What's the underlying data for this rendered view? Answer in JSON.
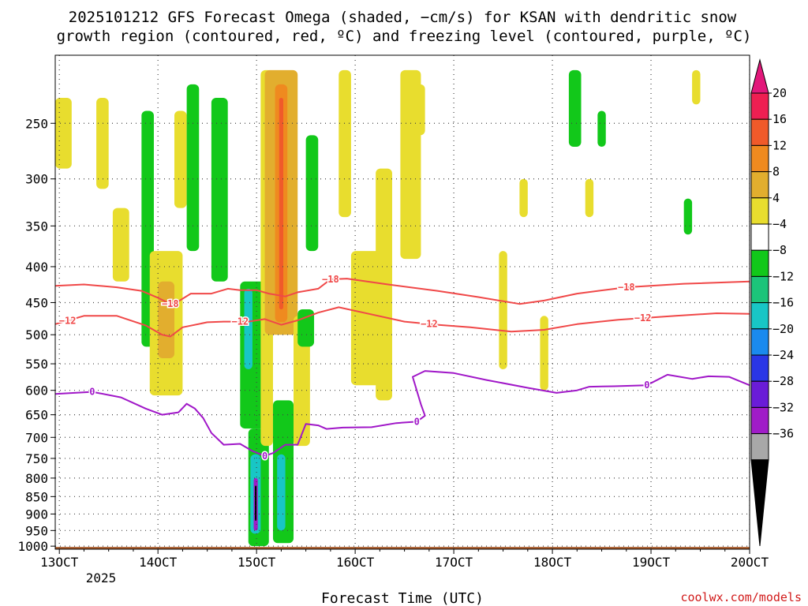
{
  "chart_data": {
    "type": "heatmap",
    "title_line1": "2025101212 GFS Forecast Omega (shaded, −cm/s) for KSAN with dendritic snow",
    "title_line2": "growth region (contoured, red, ºC) and freezing level (contoured, purple, ºC)",
    "xlabel": "Forecast Time (UTC)",
    "x_year_label": "2025",
    "credit": "coolwx.com/models",
    "x_ticks": [
      {
        "label": "13OCT",
        "hour": 0
      },
      {
        "label": "14OCT",
        "hour": 24
      },
      {
        "label": "15OCT",
        "hour": 48
      },
      {
        "label": "16OCT",
        "hour": 72
      },
      {
        "label": "17OCT",
        "hour": 96
      },
      {
        "label": "18OCT",
        "hour": 120
      },
      {
        "label": "19OCT",
        "hour": 144
      },
      {
        "label": "20OCT",
        "hour": 168
      }
    ],
    "x_range_hours": [
      -1,
      168
    ],
    "y_ticks": [
      250,
      300,
      350,
      400,
      450,
      500,
      550,
      600,
      650,
      700,
      750,
      800,
      850,
      900,
      950,
      1000
    ],
    "y_range_hpa": [
      200,
      1010
    ],
    "colorbar": {
      "ticks": [
        "20",
        "16",
        "12",
        "8",
        "4",
        "−4",
        "−8",
        "−12",
        "−16",
        "−20",
        "−24",
        "−28",
        "−32",
        "−36"
      ],
      "colors": [
        "#ee1f52",
        "#f05a2a",
        "#ef8a1f",
        "#e2ae2e",
        "#e8dd2e",
        "#ffffff",
        "#12c81a",
        "#1cc47a",
        "#18c6c6",
        "#1a8aee",
        "#2a36e6",
        "#6a1cd8",
        "#a01cc8",
        "#a8a8a8",
        "#000000"
      ],
      "top_arrow_color": "#e2177a",
      "bottom_arrow_color": "#000000"
    },
    "contours": [
      {
        "name": "dgz-minus18",
        "label": "−18",
        "color": "#f04848",
        "points": [
          [
            -1,
            426
          ],
          [
            6,
            424
          ],
          [
            14,
            428
          ],
          [
            20,
            433
          ],
          [
            24,
            443
          ],
          [
            27,
            452
          ],
          [
            29,
            448
          ],
          [
            32,
            437
          ],
          [
            37,
            437
          ],
          [
            41,
            430
          ],
          [
            44,
            432
          ],
          [
            48,
            432
          ],
          [
            51,
            437
          ],
          [
            55,
            441
          ],
          [
            58,
            435
          ],
          [
            63,
            430
          ],
          [
            66,
            417
          ],
          [
            70,
            416
          ],
          [
            80,
            424
          ],
          [
            92,
            433
          ],
          [
            102,
            442
          ],
          [
            112,
            452
          ],
          [
            118,
            447
          ],
          [
            126,
            437
          ],
          [
            138,
            428
          ],
          [
            152,
            423
          ],
          [
            168,
            420
          ]
        ],
        "label_hours": [
          27,
          66,
          138
        ]
      },
      {
        "name": "dgz-minus12",
        "label": "−12",
        "color": "#f04848",
        "points": [
          [
            -1,
            483
          ],
          [
            6,
            470
          ],
          [
            14,
            470
          ],
          [
            21,
            485
          ],
          [
            25,
            500
          ],
          [
            27,
            503
          ],
          [
            30,
            488
          ],
          [
            36,
            480
          ],
          [
            40,
            479
          ],
          [
            46,
            479
          ],
          [
            50,
            475
          ],
          [
            54,
            484
          ],
          [
            58,
            477
          ],
          [
            63,
            465
          ],
          [
            68,
            457
          ],
          [
            74,
            465
          ],
          [
            84,
            479
          ],
          [
            92,
            484
          ],
          [
            100,
            488
          ],
          [
            110,
            495
          ],
          [
            118,
            492
          ],
          [
            126,
            483
          ],
          [
            136,
            476
          ],
          [
            150,
            470
          ],
          [
            160,
            466
          ],
          [
            168,
            467
          ]
        ],
        "label_hours": [
          2,
          44,
          90,
          142
        ]
      },
      {
        "name": "freezing-level-0c",
        "label": "0",
        "color": "#a017c8",
        "points": [
          [
            -1,
            607
          ],
          [
            8,
            603
          ],
          [
            15,
            614
          ],
          [
            21,
            637
          ],
          [
            25,
            650
          ],
          [
            29,
            645
          ],
          [
            31,
            627
          ],
          [
            33,
            637
          ],
          [
            35,
            657
          ],
          [
            37,
            690
          ],
          [
            40,
            717
          ],
          [
            44,
            715
          ],
          [
            47,
            732
          ],
          [
            50,
            744
          ],
          [
            52,
            737
          ],
          [
            55,
            717
          ],
          [
            58,
            717
          ],
          [
            60,
            670
          ],
          [
            63,
            673
          ],
          [
            65,
            681
          ],
          [
            69,
            678
          ],
          [
            76,
            677
          ],
          [
            82,
            668
          ],
          [
            87,
            665
          ],
          [
            89,
            652
          ],
          [
            88,
            628
          ],
          [
            86,
            574
          ],
          [
            89,
            563
          ],
          [
            96,
            567
          ],
          [
            104,
            580
          ],
          [
            114,
            595
          ],
          [
            121,
            605
          ],
          [
            126,
            600
          ],
          [
            129,
            593
          ],
          [
            135,
            592
          ],
          [
            143,
            590
          ],
          [
            148,
            570
          ],
          [
            154,
            578
          ],
          [
            158,
            573
          ],
          [
            163,
            574
          ],
          [
            168,
            590
          ]
        ],
        "label_hours": [
          8,
          50,
          87,
          143
        ]
      }
    ],
    "shaded_omega_regions": [
      {
        "t0": -1,
        "t1": 3,
        "p0": 230,
        "p1": 290,
        "value": 5
      },
      {
        "t0": 9,
        "t1": 12,
        "p0": 230,
        "p1": 310,
        "value": 6
      },
      {
        "t0": 13,
        "t1": 17,
        "p0": 330,
        "p1": 420,
        "value": 5
      },
      {
        "t0": 20,
        "t1": 23,
        "p0": 240,
        "p1": 520,
        "value": -6
      },
      {
        "t0": 22,
        "t1": 30,
        "p0": 380,
        "p1": 610,
        "value": 5
      },
      {
        "t0": 24,
        "t1": 28,
        "p0": 420,
        "p1": 540,
        "value": 9
      },
      {
        "t0": 28,
        "t1": 31,
        "p0": 240,
        "p1": 330,
        "value": 6
      },
      {
        "t0": 31,
        "t1": 34,
        "p0": 220,
        "p1": 380,
        "value": -5
      },
      {
        "t0": 37,
        "t1": 41,
        "p0": 230,
        "p1": 420,
        "value": -6
      },
      {
        "t0": 44,
        "t1": 50,
        "p0": 420,
        "p1": 680,
        "value": -6
      },
      {
        "t0": 45,
        "t1": 47,
        "p0": 430,
        "p1": 560,
        "value": -14
      },
      {
        "t0": 46,
        "t1": 51,
        "p0": 680,
        "p1": 1000,
        "value": -7
      },
      {
        "t0": 46.5,
        "t1": 49,
        "p0": 740,
        "p1": 960,
        "value": -14
      },
      {
        "t0": 47.3,
        "t1": 48.3,
        "p0": 800,
        "p1": 950,
        "value": -28
      },
      {
        "t0": 47.6,
        "t1": 48,
        "p0": 820,
        "p1": 920,
        "value": -36
      },
      {
        "t0": 49,
        "t1": 52,
        "p0": 210,
        "p1": 720,
        "value": 5
      },
      {
        "t0": 50,
        "t1": 58,
        "p0": 210,
        "p1": 500,
        "value": 10
      },
      {
        "t0": 52.5,
        "t1": 55.5,
        "p0": 220,
        "p1": 480,
        "value": 15
      },
      {
        "t0": 53.5,
        "t1": 54.5,
        "p0": 230,
        "p1": 460,
        "value": 19
      },
      {
        "t0": 52,
        "t1": 57,
        "p0": 620,
        "p1": 990,
        "value": -6
      },
      {
        "t0": 53,
        "t1": 55,
        "p0": 740,
        "p1": 950,
        "value": -13
      },
      {
        "t0": 57,
        "t1": 61,
        "p0": 470,
        "p1": 720,
        "value": 5
      },
      {
        "t0": 58,
        "t1": 62,
        "p0": 460,
        "p1": 520,
        "value": -6
      },
      {
        "t0": 60,
        "t1": 63,
        "p0": 260,
        "p1": 380,
        "value": -6
      },
      {
        "t0": 68,
        "t1": 71,
        "p0": 210,
        "p1": 340,
        "value": 7
      },
      {
        "t0": 71,
        "t1": 79,
        "p0": 380,
        "p1": 590,
        "value": 5
      },
      {
        "t0": 77,
        "t1": 81,
        "p0": 290,
        "p1": 620,
        "value": 5
      },
      {
        "t0": 83,
        "t1": 88,
        "p0": 210,
        "p1": 390,
        "value": 5
      },
      {
        "t0": 86,
        "t1": 89,
        "p0": 220,
        "p1": 260,
        "value": 5
      },
      {
        "t0": 107,
        "t1": 109,
        "p0": 380,
        "p1": 560,
        "value": 5
      },
      {
        "t0": 112,
        "t1": 114,
        "p0": 300,
        "p1": 340,
        "value": 5
      },
      {
        "t0": 117,
        "t1": 119,
        "p0": 470,
        "p1": 600,
        "value": 5
      },
      {
        "t0": 124,
        "t1": 127,
        "p0": 210,
        "p1": 270,
        "value": -6
      },
      {
        "t0": 128,
        "t1": 130,
        "p0": 300,
        "p1": 340,
        "value": 5
      },
      {
        "t0": 131,
        "t1": 133,
        "p0": 240,
        "p1": 270,
        "value": -6
      },
      {
        "t0": 152,
        "t1": 154,
        "p0": 320,
        "p1": 360,
        "value": -6
      },
      {
        "t0": 154,
        "t1": 156,
        "p0": 210,
        "p1": 235,
        "value": 5
      }
    ],
    "surface_color": "#a85a2a"
  }
}
